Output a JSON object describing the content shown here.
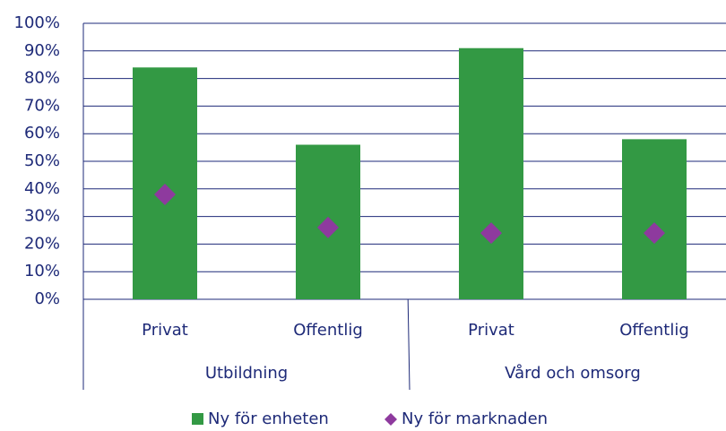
{
  "chart_data": {
    "type": "bar",
    "groups": [
      {
        "name": "Utbildning",
        "categories": [
          "Privat",
          "Offentlig"
        ]
      },
      {
        "name": "Vård och omsorg",
        "categories": [
          "Privat",
          "Offentlig"
        ]
      }
    ],
    "series": [
      {
        "name": "Ny för enheten",
        "type": "bar",
        "color": "#339944",
        "values": [
          84,
          56,
          91,
          58
        ]
      },
      {
        "name": "Ny för marknaden",
        "type": "scatter",
        "marker": "diamond",
        "color": "#8e3a9e",
        "values": [
          38,
          26,
          24,
          24
        ]
      }
    ],
    "ylim": [
      0,
      100
    ],
    "yticks": [
      {
        "value": 0,
        "label": "0%"
      },
      {
        "value": 10,
        "label": "10%"
      },
      {
        "value": 20,
        "label": "20%"
      },
      {
        "value": 30,
        "label": "30%"
      },
      {
        "value": 40,
        "label": "40%"
      },
      {
        "value": 50,
        "label": "50%"
      },
      {
        "value": 60,
        "label": "60%"
      },
      {
        "value": 70,
        "label": "70%"
      },
      {
        "value": 80,
        "label": "80%"
      },
      {
        "value": 90,
        "label": "90%"
      },
      {
        "value": 100,
        "label": "100%"
      }
    ],
    "grid": true,
    "legend": "bottom"
  }
}
